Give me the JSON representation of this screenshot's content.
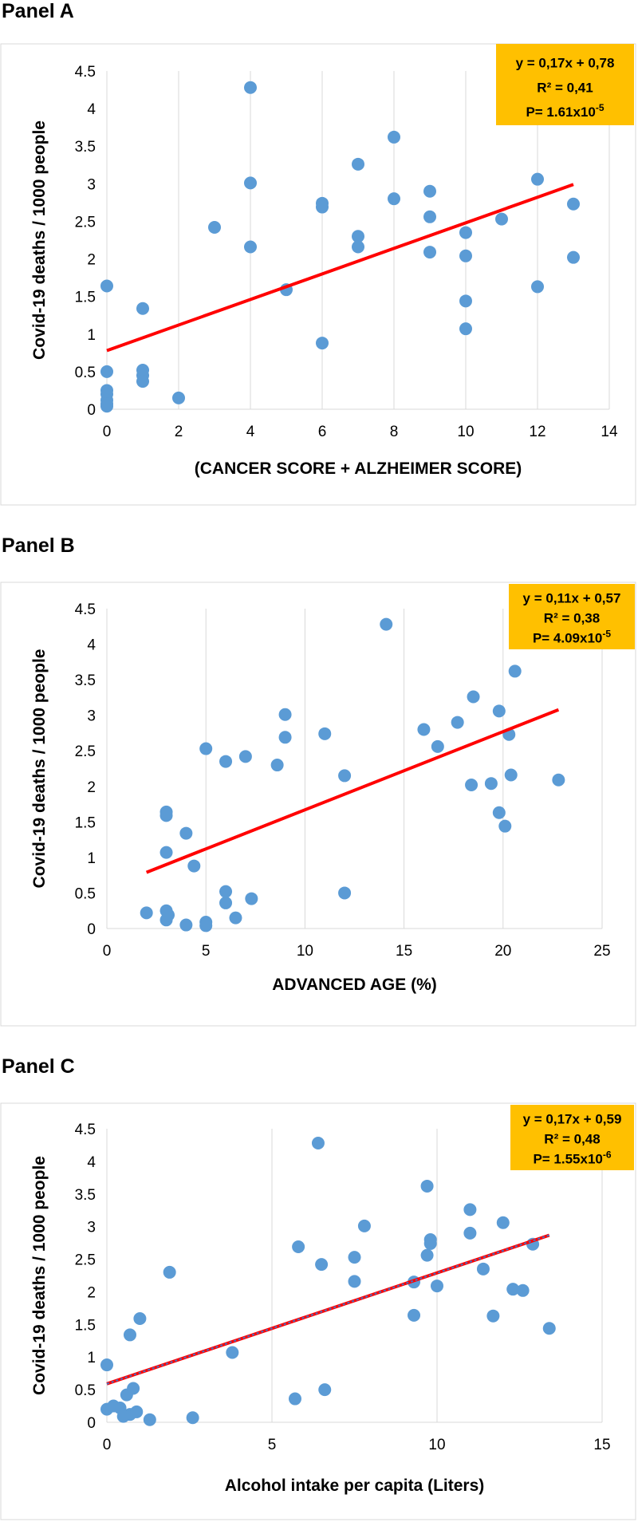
{
  "panels": [
    {
      "title": "Panel A",
      "chart_data": {
        "type": "scatter",
        "xlabel": "(CANCER SCORE + ALZHEIMER SCORE)",
        "ylabel": "Covid-19 deaths / 1000 people",
        "xlim": [
          0,
          14
        ],
        "ylim": [
          0,
          4.5
        ],
        "xticks": [
          0,
          2,
          4,
          6,
          8,
          10,
          12,
          14
        ],
        "yticks": [
          "0",
          "0.5",
          "1",
          "1.5",
          "2",
          "2.5",
          "3",
          "3.5",
          "4",
          "4.5"
        ],
        "grid": "vertical",
        "points": [
          [
            0,
            1.64
          ],
          [
            0,
            0.5
          ],
          [
            0,
            0.25
          ],
          [
            0,
            0.2
          ],
          [
            0,
            0.12
          ],
          [
            0,
            0.07
          ],
          [
            0,
            0.04
          ],
          [
            1,
            1.34
          ],
          [
            1,
            0.52
          ],
          [
            1,
            0.45
          ],
          [
            1,
            0.37
          ],
          [
            2,
            0.15
          ],
          [
            3,
            2.42
          ],
          [
            4,
            4.28
          ],
          [
            4,
            3.01
          ],
          [
            4,
            2.16
          ],
          [
            5,
            1.59
          ],
          [
            6,
            2.74
          ],
          [
            6,
            2.69
          ],
          [
            6,
            0.88
          ],
          [
            7,
            3.26
          ],
          [
            7,
            2.3
          ],
          [
            7,
            2.16
          ],
          [
            8,
            3.62
          ],
          [
            8,
            2.8
          ],
          [
            9,
            2.9
          ],
          [
            9,
            2.56
          ],
          [
            9,
            2.09
          ],
          [
            10,
            2.35
          ],
          [
            10,
            2.04
          ],
          [
            10,
            1.44
          ],
          [
            10,
            1.07
          ],
          [
            11,
            2.53
          ],
          [
            12,
            3.06
          ],
          [
            12,
            1.63
          ],
          [
            13,
            2.73
          ],
          [
            13,
            2.02
          ]
        ],
        "trendline": {
          "slope": 0.17,
          "intercept": 0.78,
          "x_range": [
            0,
            13
          ],
          "style": "solid-red"
        },
        "annotation": {
          "line1": "y = 0,17x + 0,78",
          "line2": "R² = 0,41",
          "line3_prefix": "P= 1.61x10",
          "line3_exp": "-5"
        },
        "colors": {
          "points": "#5b9bd5",
          "trendline": "#ff0000",
          "annotation_bg": "#ffc000"
        }
      }
    },
    {
      "title": "Panel B",
      "chart_data": {
        "type": "scatter",
        "xlabel": "ADVANCED AGE (%)",
        "ylabel": "Covid-19 deaths / 1000 people",
        "xlim": [
          0,
          25
        ],
        "ylim": [
          0,
          4.5
        ],
        "xticks": [
          0,
          5,
          10,
          15,
          20,
          25
        ],
        "yticks": [
          "0",
          "0.5",
          "1",
          "1.5",
          "2",
          "2.5",
          "3",
          "3.5",
          "4",
          "4.5"
        ],
        "grid": "vertical",
        "points": [
          [
            2,
            0.22
          ],
          [
            3,
            1.64
          ],
          [
            3,
            1.59
          ],
          [
            3,
            1.07
          ],
          [
            3,
            0.25
          ],
          [
            3,
            0.12
          ],
          [
            3.1,
            0.19
          ],
          [
            4,
            1.34
          ],
          [
            4,
            0.05
          ],
          [
            4.4,
            0.88
          ],
          [
            5,
            2.53
          ],
          [
            5,
            0.09
          ],
          [
            5,
            0.04
          ],
          [
            6,
            2.35
          ],
          [
            6,
            0.52
          ],
          [
            6,
            0.36
          ],
          [
            6.5,
            0.15
          ],
          [
            7,
            2.42
          ],
          [
            7.3,
            0.42
          ],
          [
            8.6,
            2.3
          ],
          [
            9,
            3.01
          ],
          [
            9,
            2.69
          ],
          [
            11,
            2.74
          ],
          [
            12,
            2.15
          ],
          [
            12,
            0.5
          ],
          [
            14.1,
            4.28
          ],
          [
            16,
            2.8
          ],
          [
            16.7,
            2.56
          ],
          [
            17.7,
            2.9
          ],
          [
            18.4,
            2.02
          ],
          [
            18.5,
            3.26
          ],
          [
            19.4,
            2.04
          ],
          [
            19.8,
            3.06
          ],
          [
            19.8,
            1.63
          ],
          [
            20.1,
            1.44
          ],
          [
            20.3,
            2.73
          ],
          [
            20.4,
            2.16
          ],
          [
            20.6,
            3.62
          ],
          [
            22.8,
            2.09
          ]
        ],
        "trendline": {
          "slope": 0.11,
          "intercept": 0.57,
          "x_range": [
            2,
            22.8
          ],
          "style": "solid-red"
        },
        "annotation": {
          "line1": "y = 0,11x + 0,57",
          "line2": "R² = 0,38",
          "line3_prefix": "P= 4.09x10",
          "line3_exp": "-5"
        },
        "colors": {
          "points": "#5b9bd5",
          "trendline": "#ff0000",
          "annotation_bg": "#ffc000"
        }
      }
    },
    {
      "title": "Panel C",
      "chart_data": {
        "type": "scatter",
        "xlabel": "Alcohol intake per capita (Liters)",
        "ylabel": "Covid-19 deaths / 1000 people",
        "xlim": [
          0,
          15
        ],
        "ylim": [
          0,
          4.5
        ],
        "xticks": [
          0,
          5,
          10,
          15
        ],
        "yticks": [
          "0",
          "0.5",
          "1",
          "1.5",
          "2",
          "2.5",
          "3",
          "3.5",
          "4",
          "4.5"
        ],
        "grid": "vertical",
        "points": [
          [
            0,
            0.88
          ],
          [
            0,
            0.2
          ],
          [
            0.2,
            0.25
          ],
          [
            0.4,
            0.22
          ],
          [
            0.5,
            0.09
          ],
          [
            0.6,
            0.42
          ],
          [
            0.7,
            1.34
          ],
          [
            0.7,
            0.12
          ],
          [
            0.8,
            0.52
          ],
          [
            0.9,
            0.16
          ],
          [
            1,
            1.59
          ],
          [
            1.3,
            0.04
          ],
          [
            1.9,
            2.3
          ],
          [
            2.6,
            0.07
          ],
          [
            3.8,
            1.07
          ],
          [
            5.7,
            0.36
          ],
          [
            5.8,
            2.69
          ],
          [
            6.4,
            4.28
          ],
          [
            6.5,
            2.42
          ],
          [
            6.6,
            0.5
          ],
          [
            7.5,
            2.53
          ],
          [
            7.5,
            2.16
          ],
          [
            7.8,
            3.01
          ],
          [
            9.3,
            2.15
          ],
          [
            9.3,
            1.64
          ],
          [
            9.7,
            3.62
          ],
          [
            9.7,
            2.56
          ],
          [
            9.8,
            2.8
          ],
          [
            9.8,
            2.74
          ],
          [
            10,
            2.09
          ],
          [
            11,
            3.26
          ],
          [
            11,
            2.9
          ],
          [
            11.4,
            2.35
          ],
          [
            11.7,
            1.63
          ],
          [
            12,
            3.06
          ],
          [
            12.3,
            2.04
          ],
          [
            12.6,
            2.02
          ],
          [
            12.9,
            2.73
          ],
          [
            13.4,
            1.44
          ]
        ],
        "trendline": {
          "slope": 0.17,
          "intercept": 0.59,
          "x_range": [
            0,
            13.4
          ],
          "style": "dashed-red-blue"
        },
        "annotation": {
          "line1": "y = 0,17x + 0,59",
          "line2": "R² = 0,48",
          "line3_prefix": "P= 1.55x10",
          "line3_exp": "-6"
        },
        "colors": {
          "points": "#5b9bd5",
          "trendline": "#ff0000",
          "trendline_dash": "#4472c4",
          "annotation_bg": "#ffc000"
        }
      }
    }
  ]
}
